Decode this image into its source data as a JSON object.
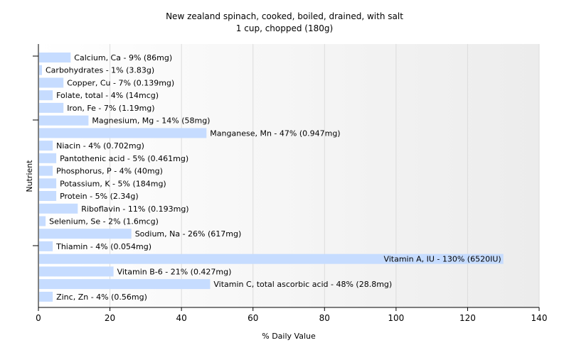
{
  "chart_data": {
    "type": "bar",
    "orientation": "horizontal",
    "title": "New zealand spinach, cooked, boiled, drained, with salt",
    "subtitle": "1 cup, chopped (180g)",
    "xlabel": "% Daily Value",
    "ylabel": "Nutrient",
    "xlim": [
      0,
      140
    ],
    "xticks": [
      "0",
      "20",
      "40",
      "60",
      "80",
      "100",
      "120",
      "140"
    ],
    "grid": true,
    "bar_color": "#c6dcff",
    "categories": [
      "Calcium, Ca",
      "Carbohydrates",
      "Copper, Cu",
      "Folate, total",
      "Iron, Fe",
      "Magnesium, Mg",
      "Manganese, Mn",
      "Niacin",
      "Pantothenic acid",
      "Phosphorus, P",
      "Potassium, K",
      "Protein",
      "Riboflavin",
      "Selenium, Se",
      "Sodium, Na",
      "Thiamin",
      "Vitamin A, IU",
      "Vitamin B-6",
      "Vitamin C, total ascorbic acid",
      "Zinc, Zn"
    ],
    "values": [
      9,
      1,
      7,
      4,
      7,
      14,
      47,
      4,
      5,
      4,
      5,
      5,
      11,
      2,
      26,
      4,
      130,
      21,
      48,
      4
    ],
    "labels": [
      "Calcium, Ca - 9% (86mg)",
      "Carbohydrates - 1% (3.83g)",
      "Copper, Cu - 7% (0.139mg)",
      "Folate, total - 4% (14mcg)",
      "Iron, Fe - 7% (1.19mg)",
      "Magnesium, Mg - 14% (58mg)",
      "Manganese, Mn - 47% (0.947mg)",
      "Niacin - 4% (0.702mg)",
      "Pantothenic acid - 5% (0.461mg)",
      "Phosphorus, P - 4% (40mg)",
      "Potassium, K - 5% (184mg)",
      "Protein - 5% (2.34g)",
      "Riboflavin - 11% (0.193mg)",
      "Selenium, Se - 2% (1.6mcg)",
      "Sodium, Na - 26% (617mg)",
      "Thiamin - 4% (0.054mg)",
      "Vitamin A, IU - 130% (6520IU)",
      "Vitamin B-6 - 21% (0.427mg)",
      "Vitamin C, total ascorbic acid - 48% (28.8mg)",
      "Zinc, Zn - 4% (0.56mg)"
    ]
  }
}
